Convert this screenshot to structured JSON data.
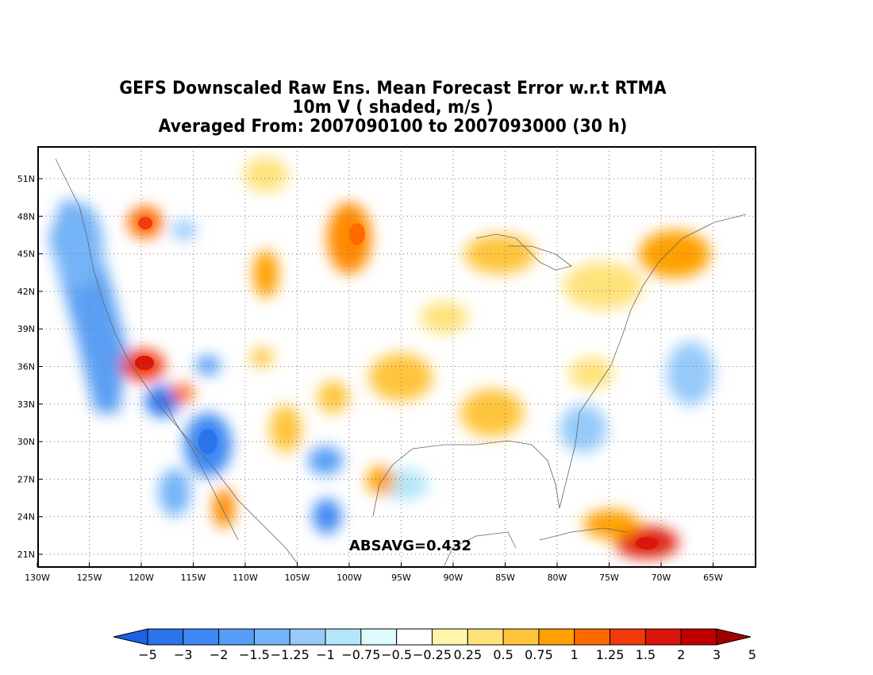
{
  "title": {
    "line1": "GEFS Downscaled Raw Ens. Mean Forecast Error w.r.t RTMA",
    "line2": "10m V ( shaded, m/s )",
    "line3": "Averaged From: 2007090100 to 2007093000 (30 h)"
  },
  "map": {
    "lon_range": [
      -130,
      -62
    ],
    "lat_range": [
      20,
      53
    ],
    "lon_ticks": [
      "130W",
      "125W",
      "120W",
      "115W",
      "110W",
      "105W",
      "100W",
      "95W",
      "90W",
      "85W",
      "80W",
      "75W",
      "70W",
      "65W"
    ],
    "lat_ticks": [
      "21N",
      "24N",
      "27N",
      "30N",
      "33N",
      "36N",
      "39N",
      "42N",
      "45N",
      "48N",
      "51N"
    ],
    "grid": true,
    "annotation": "ABSAVG=0.432"
  },
  "colorbar": {
    "labels": [
      "−5",
      "−3",
      "−2",
      "−1.5",
      "−1.25",
      "−1",
      "−0.75",
      "−0.5",
      "−0.25",
      "0.25",
      "0.5",
      "0.75",
      "1",
      "1.25",
      "1.5",
      "2",
      "3",
      "5"
    ],
    "colors": [
      "#1e60e6",
      "#2a74ec",
      "#3d88f2",
      "#559df5",
      "#74b4f8",
      "#96caf9",
      "#b4e6fb",
      "#dcfbfd",
      "#ffffff",
      "#fff6ac",
      "#ffe27a",
      "#ffc43c",
      "#ffa000",
      "#ff6a00",
      "#f23a0a",
      "#da150b",
      "#be0000",
      "#a00000"
    ]
  }
}
